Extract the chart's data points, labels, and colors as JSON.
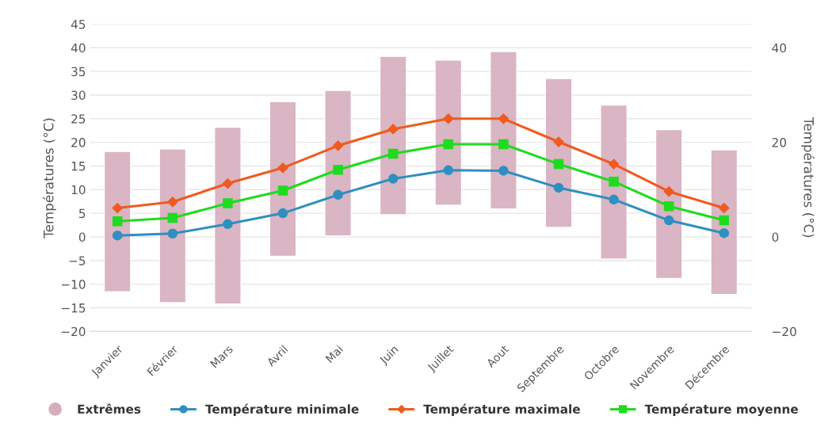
{
  "chart_data": {
    "type": "line",
    "categories": [
      "Janvier",
      "Février",
      "Mars",
      "Avril",
      "Mai",
      "Juin",
      "Juillet",
      "Aout",
      "Septembre",
      "Octobre",
      "Novembre",
      "Décembre"
    ],
    "ylabel": "Températures (°C)",
    "y2label": "Températures (°C)",
    "ylim": [
      -20,
      45
    ],
    "yticks": [
      -20,
      -15,
      -10,
      -5,
      0,
      5,
      10,
      15,
      20,
      25,
      30,
      35,
      40,
      45
    ],
    "y2lim": [
      -20,
      45
    ],
    "y2ticks": [
      -20,
      0,
      20,
      40
    ],
    "grid": "y",
    "legend": "bottom",
    "series": [
      {
        "name": "Extrêmes",
        "type": "bar",
        "color": "#d6adbd",
        "base": [
          -11.6,
          -13.9,
          -14.2,
          -4.1,
          0.2,
          4.7,
          6.7,
          5.9,
          2.0,
          -4.7,
          -8.8,
          -12.2
        ],
        "values": [
          29.7,
          32.5,
          37.4,
          32.7,
          30.8,
          33.5,
          30.7,
          33.3,
          31.5,
          32.6,
          31.5,
          30.6
        ]
      },
      {
        "name": "Température minimale",
        "color": "#2f8fc0",
        "marker": "circle",
        "values": [
          0.3,
          0.7,
          2.7,
          5.0,
          8.9,
          12.3,
          14.1,
          14.0,
          10.4,
          7.9,
          3.5,
          0.8
        ]
      },
      {
        "name": "Température maximale",
        "color": "#f05a1e",
        "marker": "diamond",
        "values": [
          6.1,
          7.4,
          11.3,
          14.6,
          19.3,
          22.8,
          25.0,
          25.0,
          20.1,
          15.4,
          9.6,
          6.1
        ]
      },
      {
        "name": "Température moyenne",
        "color": "#1fdb1f",
        "marker": "square",
        "values": [
          3.3,
          4.0,
          7.1,
          9.8,
          14.2,
          17.6,
          19.6,
          19.6,
          15.4,
          11.7,
          6.5,
          3.5
        ]
      }
    ]
  }
}
